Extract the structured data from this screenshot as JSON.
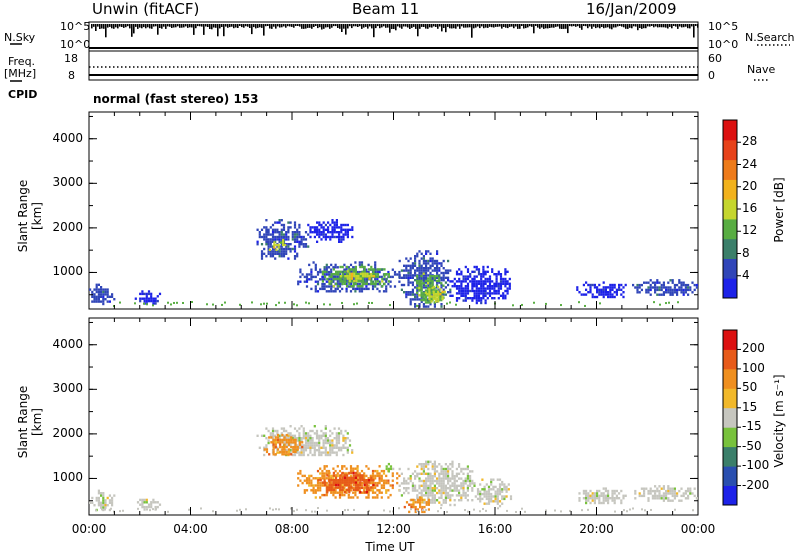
{
  "header": {
    "station": "Unwin (fitACF)",
    "beam": "Beam 11",
    "date": "16/Jan/2009"
  },
  "strips": {
    "nsky_label": "N.Sky",
    "nsky_ticks": [
      "10^5",
      "10^0"
    ],
    "nsearch_label": "N.Search",
    "nsearch_ticks": [
      "10^5",
      "10^0"
    ],
    "freq_label": "Freq.",
    "freq_unit": "[MHz]",
    "freq_ticks": [
      "18",
      "8"
    ],
    "nave_label": "Nave",
    "nave_ticks": [
      "60",
      "0"
    ],
    "cpid_label": "CPID",
    "cpid_text": "normal (fast stereo) 153"
  },
  "colors": {
    "power": [
      "#1d22e8",
      "#3045b8",
      "#3b7f6a",
      "#58ad42",
      "#c5d62e",
      "#f2b21c",
      "#ee7b1a",
      "#e7421a",
      "#dc1010"
    ],
    "velocity": [
      "#1d22e8",
      "#2a4fb0",
      "#3b7f6a",
      "#78c23c",
      "#c6c6bf",
      "#f1b82a",
      "#ef8f1f",
      "#e75a19",
      "#dc1010"
    ]
  },
  "chart_data": [
    {
      "type": "heatmap",
      "name": "power",
      "ylabel": "Slant Range [km]",
      "y_ticks": [
        "4000",
        "3000",
        "2000",
        "1000"
      ],
      "x_ticks": [
        "00:00",
        "04:00",
        "08:00",
        "12:00",
        "16:00",
        "20:00",
        "00:00"
      ],
      "xlabel": "",
      "colorbar_label": "Power [dB]",
      "colorbar_ticks": [
        "28",
        "24",
        "20",
        "16",
        "12",
        "8",
        "4"
      ],
      "regions": [
        {
          "t0": 0.0,
          "t1": 1.0,
          "r0": 300,
          "r1": 750,
          "level": 1
        },
        {
          "t0": 1.8,
          "t1": 2.8,
          "r0": 300,
          "r1": 600,
          "level": 0
        },
        {
          "t0": 6.6,
          "t1": 8.6,
          "r0": 1300,
          "r1": 2200,
          "level": 1
        },
        {
          "t0": 7.0,
          "t1": 7.8,
          "r0": 1500,
          "r1": 1750,
          "level": 4
        },
        {
          "t0": 8.6,
          "t1": 10.4,
          "r0": 1700,
          "r1": 2200,
          "level": 0
        },
        {
          "t0": 8.2,
          "t1": 12.2,
          "r0": 550,
          "r1": 1250,
          "level": 1
        },
        {
          "t0": 9.0,
          "t1": 11.8,
          "r0": 700,
          "r1": 1150,
          "level": 3
        },
        {
          "t0": 9.8,
          "t1": 11.2,
          "r0": 800,
          "r1": 1050,
          "level": 4
        },
        {
          "t0": 12.2,
          "t1": 14.2,
          "r0": 250,
          "r1": 1500,
          "level": 1
        },
        {
          "t0": 12.8,
          "t1": 14.0,
          "r0": 300,
          "r1": 1000,
          "level": 3
        },
        {
          "t0": 13.2,
          "t1": 14.0,
          "r0": 350,
          "r1": 700,
          "level": 4
        },
        {
          "t0": 14.2,
          "t1": 16.6,
          "r0": 300,
          "r1": 1150,
          "level": 0
        },
        {
          "t0": 19.2,
          "t1": 21.2,
          "r0": 450,
          "r1": 800,
          "level": 0
        },
        {
          "t0": 21.4,
          "t1": 24.0,
          "r0": 500,
          "r1": 850,
          "level": 1
        }
      ]
    },
    {
      "type": "heatmap",
      "name": "velocity",
      "ylabel": "Slant Range [km]",
      "y_ticks": [
        "4000",
        "3000",
        "2000",
        "1000"
      ],
      "x_ticks": [
        "00:00",
        "04:00",
        "08:00",
        "12:00",
        "16:00",
        "20:00",
        "00:00"
      ],
      "xlabel": "Time UT",
      "colorbar_label": "Velocity [m s⁻¹]",
      "colorbar_ticks": [
        "200",
        "100",
        "50",
        "15",
        "-15",
        "-50",
        "-100",
        "-200"
      ],
      "regions": [
        {
          "t0": 0.0,
          "t1": 1.0,
          "r0": 300,
          "r1": 750,
          "level": 4
        },
        {
          "t0": 1.8,
          "t1": 2.8,
          "r0": 300,
          "r1": 600,
          "level": 4
        },
        {
          "t0": 6.6,
          "t1": 10.4,
          "r0": 1500,
          "r1": 2200,
          "level": 4
        },
        {
          "t0": 6.8,
          "t1": 8.4,
          "r0": 1550,
          "r1": 2000,
          "level": 6
        },
        {
          "t0": 8.2,
          "t1": 12.2,
          "r0": 550,
          "r1": 1300,
          "level": 6
        },
        {
          "t0": 9.0,
          "t1": 11.2,
          "r0": 700,
          "r1": 1150,
          "level": 7
        },
        {
          "t0": 11.6,
          "t1": 12.0,
          "r0": 1150,
          "r1": 1350,
          "level": 3
        },
        {
          "t0": 12.2,
          "t1": 15.2,
          "r0": 400,
          "r1": 1400,
          "level": 4
        },
        {
          "t0": 12.4,
          "t1": 13.4,
          "r0": 250,
          "r1": 600,
          "level": 6
        },
        {
          "t0": 15.2,
          "t1": 16.6,
          "r0": 400,
          "r1": 1000,
          "level": 4
        },
        {
          "t0": 19.2,
          "t1": 21.2,
          "r0": 450,
          "r1": 800,
          "level": 4
        },
        {
          "t0": 21.4,
          "t1": 24.0,
          "r0": 500,
          "r1": 850,
          "level": 4
        }
      ]
    }
  ]
}
